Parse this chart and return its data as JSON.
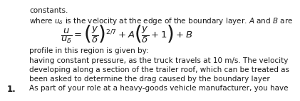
{
  "number": "1.",
  "line1": "As part of your role at a heavy-goods vehicle manufacturer, you have",
  "line2": "been asked to determine the drag caused by the boundary layer",
  "line3": "developing along a section of the trailer roof, which can be treated as",
  "line4": "having constant pressure, as the truck travels at 10 m/s. The velocity",
  "line5": "profile in this region is given by:",
  "formula": "$\\dfrac{u}{u_\\delta} = \\left(\\dfrac{y}{\\delta}\\right)^{2/7} + A\\left(\\dfrac{y}{\\delta}+1\\right) + B$",
  "footer1": "where $u_\\delta$ is the velocity at the edge of the boundary layer. $A$ and $B$ are",
  "footer2": "constants.",
  "bg_color": "#ffffff",
  "text_color": "#1a1a1a",
  "font_size_body": 7.5,
  "font_size_formula": 9.5,
  "font_size_number": 8.5
}
